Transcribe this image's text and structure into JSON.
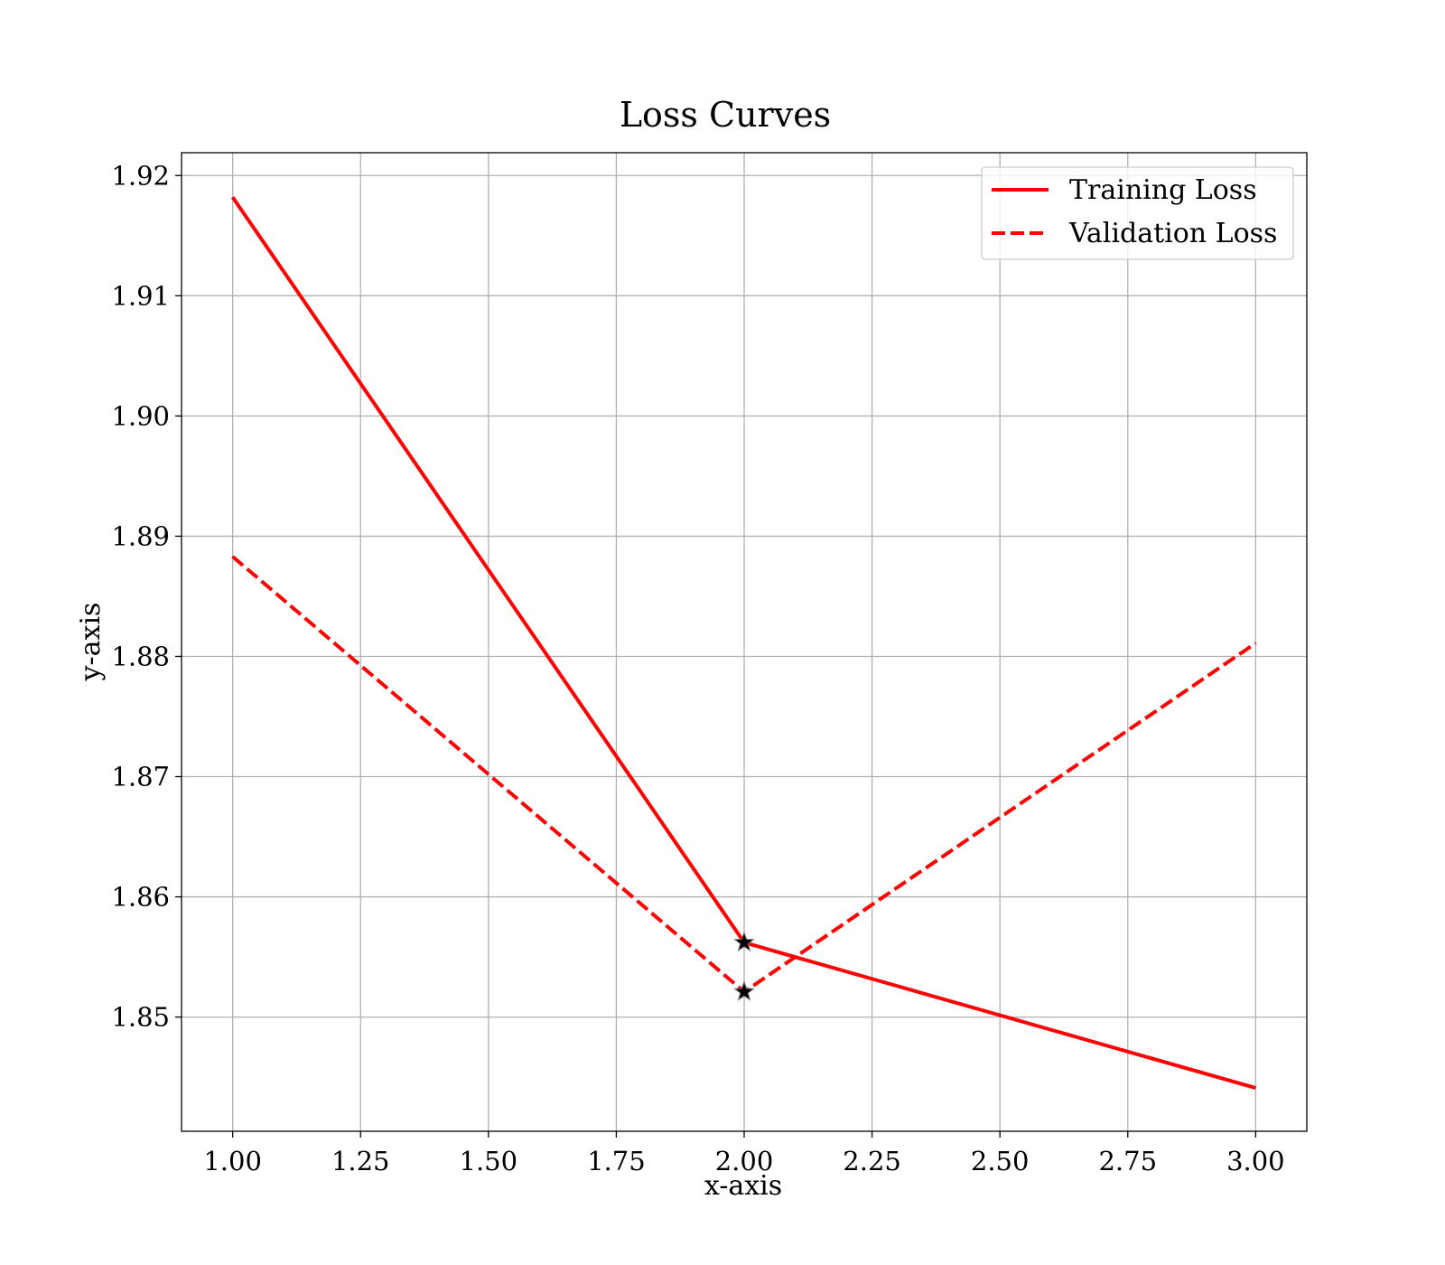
{
  "chart_data": {
    "type": "line",
    "title": "Loss Curves",
    "xlabel": "x-axis",
    "ylabel": "y-axis",
    "xlim": [
      0.9,
      3.1
    ],
    "ylim": [
      1.8405,
      1.9219
    ],
    "xticks": [
      1.0,
      1.25,
      1.5,
      1.75,
      2.0,
      2.25,
      2.5,
      2.75,
      3.0
    ],
    "xtick_labels": [
      "1.00",
      "1.25",
      "1.50",
      "1.75",
      "2.00",
      "2.25",
      "2.50",
      "2.75",
      "3.00"
    ],
    "yticks": [
      1.85,
      1.86,
      1.87,
      1.88,
      1.89,
      1.9,
      1.91,
      1.92
    ],
    "ytick_labels": [
      "1.85",
      "1.86",
      "1.87",
      "1.88",
      "1.89",
      "1.90",
      "1.91",
      "1.92"
    ],
    "grid": true,
    "legend_position": "top-right",
    "series": [
      {
        "name": "Training Loss",
        "x": [
          1.0,
          2.0,
          3.0
        ],
        "values": [
          1.9182,
          1.8562,
          1.8441
        ],
        "color": "#ff0000",
        "style": "solid"
      },
      {
        "name": "Validation Loss",
        "x": [
          1.0,
          2.0,
          3.0
        ],
        "values": [
          1.8883,
          1.8521,
          1.8811
        ],
        "color": "#ff0000",
        "style": "dashed"
      }
    ],
    "markers": [
      {
        "series": "Training Loss",
        "x": 2.0,
        "y": 1.8562,
        "shape": "star-icon",
        "color": "#000000"
      },
      {
        "series": "Validation Loss",
        "x": 2.0,
        "y": 1.8521,
        "shape": "star-icon",
        "color": "#000000"
      }
    ]
  }
}
